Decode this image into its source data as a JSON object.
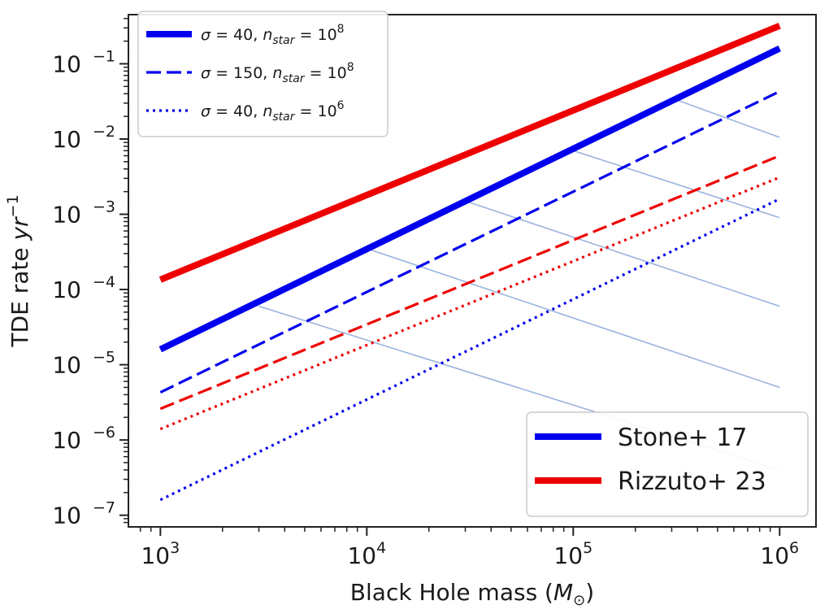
{
  "chart_data": {
    "type": "line",
    "xscale": "log",
    "yscale": "log",
    "xlim": [
      700,
      1500000
    ],
    "ylim": [
      7e-08,
      0.45
    ],
    "xticks": [
      1000,
      10000,
      100000,
      1000000
    ],
    "xtick_labels": [
      {
        "base": "10",
        "exp": "3"
      },
      {
        "base": "10",
        "exp": "4"
      },
      {
        "base": "10",
        "exp": "5"
      },
      {
        "base": "10",
        "exp": "6"
      }
    ],
    "yticks": [
      1e-07,
      1e-06,
      1e-05,
      0.0001,
      0.001,
      0.01,
      0.1
    ],
    "ytick_labels": [
      {
        "base": "10",
        "exp": "−7"
      },
      {
        "base": "10",
        "exp": "−6"
      },
      {
        "base": "10",
        "exp": "−5"
      },
      {
        "base": "10",
        "exp": "−4"
      },
      {
        "base": "10",
        "exp": "−3"
      },
      {
        "base": "10",
        "exp": "−2"
      },
      {
        "base": "10",
        "exp": "−1"
      }
    ],
    "xlabel": {
      "text": "Black Hole mass (",
      "var": "M",
      "sub": "⊙",
      "close": ")"
    },
    "ylabel": {
      "text": "TDE rate  ",
      "var": "yr",
      "exp": "−1"
    },
    "grid": false,
    "series": [
      {
        "model": "Stone+ 17",
        "color": "#0000ee",
        "style": "solid",
        "x": [
          1000,
          1000000
        ],
        "y": [
          1.6e-05,
          0.16
        ]
      },
      {
        "model": "Stone+ 17",
        "color": "#0000ee",
        "style": "dashed",
        "x": [
          1000,
          1000000
        ],
        "y": [
          4.3e-06,
          0.043
        ]
      },
      {
        "model": "Stone+ 17",
        "color": "#0000ee",
        "style": "dotted",
        "x": [
          1000,
          1000000
        ],
        "y": [
          1.6e-07,
          0.0016
        ]
      },
      {
        "model": "Rizzuto+ 23",
        "color": "#ee0000",
        "style": "solid",
        "x": [
          1000,
          1000000
        ],
        "y": [
          0.000135,
          0.32
        ]
      },
      {
        "model": "Rizzuto+ 23",
        "color": "#ee0000",
        "style": "dashed",
        "x": [
          1000,
          1000000
        ],
        "y": [
          2.6e-06,
          0.006
        ]
      },
      {
        "model": "Rizzuto+ 23",
        "color": "#ee0000",
        "style": "dotted",
        "x": [
          1000,
          1000000
        ],
        "y": [
          1.4e-06,
          0.0031
        ]
      }
    ],
    "reference_lines": {
      "color": "#9ab4dc",
      "lines": [
        {
          "x": [
            3000,
            1000000
          ],
          "y": [
            6e-05,
            4e-07
          ]
        },
        {
          "x": [
            10000,
            1000000
          ],
          "y": [
            0.00035,
            5e-06
          ]
        },
        {
          "x": [
            30000,
            1000000
          ],
          "y": [
            0.0015,
            6e-05
          ]
        },
        {
          "x": [
            100000,
            1000000
          ],
          "y": [
            0.007,
            0.0009
          ]
        },
        {
          "x": [
            300000,
            1000000
          ],
          "y": [
            0.035,
            0.0105
          ]
        }
      ]
    },
    "legend_top_left": {
      "placement": "top-left",
      "entries": [
        {
          "sigma": "40",
          "nstar_exp": "8",
          "style": "solid"
        },
        {
          "sigma": "150",
          "nstar_exp": "8",
          "style": "dashed"
        },
        {
          "sigma": "40",
          "nstar_exp": "6",
          "style": "dotted"
        }
      ],
      "sigma_symbol": "σ",
      "n_symbol": "n",
      "n_sub": "star",
      "power_base": "10"
    },
    "legend_bottom_right": {
      "placement": "bottom-right",
      "entries": [
        {
          "label": "Stone+ 17",
          "color": "#0000ee"
        },
        {
          "label": "Rizzuto+ 23",
          "color": "#ee0000"
        }
      ]
    }
  }
}
